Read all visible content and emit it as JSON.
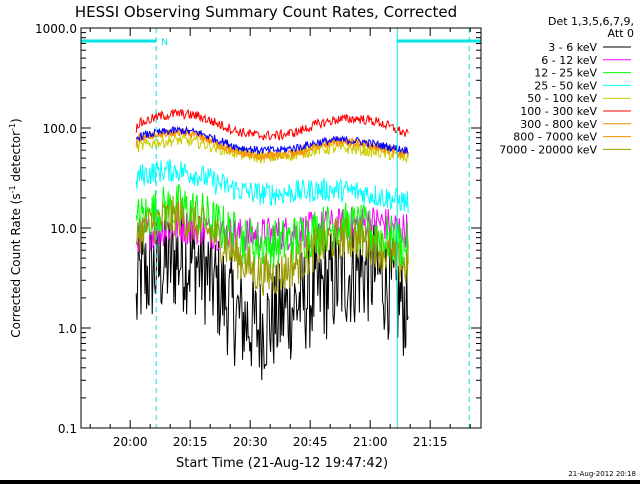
{
  "chart_data": {
    "type": "line",
    "title": "HESSI Observing Summary Count Rates, Corrected",
    "xlabel": "Start Time (21-Aug-12 19:47:42)",
    "ylabel": "Corrected Count Rate (s⁻¹ detector⁻¹)",
    "ylabel_parts": {
      "a": "Corrected Count Rate (s",
      "sup1": "-1",
      "b": " detector",
      "sup2": "-1",
      "c": ")"
    },
    "yscale": "log",
    "ylim": [
      0.1,
      1000
    ],
    "xlim": [
      "19:47:42",
      "21:27:42"
    ],
    "x_ticks": [
      "20:00",
      "20:15",
      "20:30",
      "20:45",
      "21:00",
      "21:15"
    ],
    "y_ticks": [
      "0.1",
      "1.0",
      "10.0",
      "100.0",
      "1000.0"
    ],
    "detector_label": "Det 1,3,5,6,7,9,",
    "attenuator_label": "Att 0",
    "timestamp": "21-Aug-2012 20:18",
    "marker_label": "N",
    "colors": {
      "background": "#ffffff",
      "axes": "#000000",
      "flag": "#00e5e5"
    },
    "flag_bars": [
      {
        "start": "19:47:42",
        "end": "20:06:30",
        "label": "N"
      },
      {
        "start": "21:06:45",
        "end": "21:27:42"
      }
    ],
    "vlines_solid": [
      "19:47:42",
      "21:06:45"
    ],
    "vlines_dashed": [
      "20:06:30",
      "21:24:45"
    ],
    "legend_position": "top-right",
    "series": [
      {
        "name": "3 - 6 keV",
        "color": "#000000",
        "noise": 0.55,
        "times": [
          "20:01:30",
          "20:02",
          "20:07",
          "20:12",
          "20:17",
          "20:22",
          "20:27",
          "20:32",
          "20:37",
          "20:42",
          "20:47",
          "20:52",
          "20:57",
          "21:02",
          "21:07",
          "21:09:30"
        ],
        "values": [
          1.5,
          3.0,
          4.0,
          5.0,
          4.5,
          2.5,
          1.3,
          1.0,
          1.3,
          1.8,
          2.3,
          3.0,
          3.8,
          3.6,
          2.0,
          1.5
        ]
      },
      {
        "name": "6 - 12 keV",
        "color": "#ff00ff",
        "noise": 0.18,
        "times": [
          "20:01:30",
          "20:02",
          "20:07",
          "20:12",
          "20:17",
          "20:22",
          "20:27",
          "20:32",
          "20:37",
          "20:42",
          "20:47",
          "20:52",
          "20:57",
          "21:02",
          "21:07",
          "21:09:30"
        ],
        "values": [
          6.5,
          8.5,
          9.5,
          10.5,
          10.0,
          9.0,
          8.5,
          8.5,
          8.8,
          9.2,
          10.0,
          10.5,
          11.0,
          11.5,
          10.0,
          9.5
        ]
      },
      {
        "name": "12 - 25 keV",
        "color": "#00ff00",
        "noise": 0.25,
        "times": [
          "20:01:30",
          "20:02",
          "20:07",
          "20:12",
          "20:17",
          "20:22",
          "20:27",
          "20:32",
          "20:37",
          "20:42",
          "20:47",
          "20:52",
          "20:57",
          "21:02",
          "21:07",
          "21:09:30"
        ],
        "values": [
          9.0,
          12.0,
          15.0,
          16.0,
          14.0,
          10.5,
          8.0,
          6.8,
          7.0,
          8.0,
          9.5,
          10.5,
          10.0,
          8.5,
          7.0,
          6.5
        ]
      },
      {
        "name": "25 - 50 keV",
        "color": "#00ffff",
        "noise": 0.12,
        "times": [
          "20:01:30",
          "20:02",
          "20:07",
          "20:12",
          "20:17",
          "20:22",
          "20:27",
          "20:32",
          "20:37",
          "20:42",
          "20:47",
          "20:52",
          "20:57",
          "21:02",
          "21:07",
          "21:09:30"
        ],
        "values": [
          28,
          33,
          37,
          38,
          34,
          28,
          24,
          22,
          22,
          23,
          24,
          24,
          23,
          21,
          19,
          18
        ]
      },
      {
        "name": "50 - 100 keV",
        "color": "#cccc00",
        "noise": 0.06,
        "times": [
          "20:01:30",
          "20:02",
          "20:07",
          "20:12",
          "20:17",
          "20:22",
          "20:27",
          "20:32",
          "20:37",
          "20:42",
          "20:47",
          "20:52",
          "20:57",
          "21:02",
          "21:07",
          "21:09:30"
        ],
        "values": [
          60,
          65,
          72,
          76,
          72,
          63,
          56,
          51,
          51,
          55,
          61,
          63,
          61,
          57,
          52,
          50
        ]
      },
      {
        "name": "100 - 300 keV",
        "color": "#ff0000",
        "noise": 0.05,
        "times": [
          "20:01:30",
          "20:02",
          "20:07",
          "20:12",
          "20:17",
          "20:22",
          "20:27",
          "20:32",
          "20:37",
          "20:42",
          "20:47",
          "20:52",
          "20:57",
          "21:02",
          "21:07",
          "21:09:30"
        ],
        "values": [
          100,
          110,
          130,
          140,
          132,
          110,
          92,
          84,
          84,
          92,
          110,
          122,
          124,
          115,
          95,
          85
        ]
      },
      {
        "name": "300 - 800 keV",
        "color": "#ff8c00",
        "noise": 0.04,
        "times": [
          "20:01:30",
          "20:02",
          "20:07",
          "20:12",
          "20:17",
          "20:22",
          "20:27",
          "20:32",
          "20:37",
          "20:42",
          "20:47",
          "20:52",
          "20:57",
          "21:02",
          "21:07",
          "21:09:30"
        ],
        "values": [
          72,
          80,
          88,
          92,
          86,
          70,
          58,
          54,
          54,
          58,
          68,
          74,
          72,
          66,
          58,
          56
        ]
      },
      {
        "name": "800 - 7000 keV",
        "color": "#ff8c00",
        "noise": 0.04,
        "times": [
          "20:01:30",
          "20:02",
          "20:07",
          "20:12",
          "20:17",
          "20:22",
          "20:27",
          "20:32",
          "20:37",
          "20:42",
          "20:47",
          "20:52",
          "20:57",
          "21:02",
          "21:07",
          "21:09:30"
        ],
        "values": [
          70,
          78,
          86,
          90,
          84,
          68,
          56,
          52,
          52,
          56,
          66,
          72,
          70,
          64,
          56,
          54
        ]
      },
      {
        "name": "7000 - 20000 keV",
        "color": "#999900",
        "noise": 0.22,
        "times": [
          "20:01:30",
          "20:02",
          "20:07",
          "20:12",
          "20:17",
          "20:22",
          "20:27",
          "20:32",
          "20:37",
          "20:42",
          "20:47",
          "20:52",
          "20:57",
          "21:02",
          "21:07",
          "21:09:30"
        ],
        "values": [
          5.0,
          9.0,
          12.0,
          13.0,
          11.0,
          8.0,
          5.0,
          3.5,
          3.4,
          4.5,
          6.5,
          8.0,
          8.0,
          6.5,
          4.5,
          4.0
        ]
      },
      {
        "name": "25 - 50 keV (blue)",
        "legend": false,
        "color": "#0000ff",
        "noise": 0.04,
        "times": [
          "20:01:30",
          "20:02",
          "20:07",
          "20:12",
          "20:17",
          "20:22",
          "20:27",
          "20:32",
          "20:37",
          "20:42",
          "20:47",
          "20:52",
          "20:57",
          "21:02",
          "21:07",
          "21:09:30"
        ],
        "values": [
          75,
          82,
          90,
          95,
          90,
          76,
          64,
          60,
          60,
          64,
          72,
          76,
          74,
          68,
          62,
          60
        ]
      }
    ]
  }
}
